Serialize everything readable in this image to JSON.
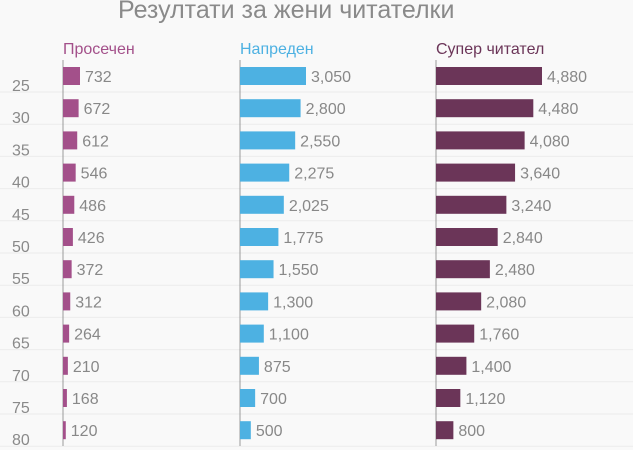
{
  "chart_data": {
    "type": "bar",
    "title": "Резултати за жени читателки",
    "categories": [
      "25",
      "30",
      "35",
      "40",
      "45",
      "50",
      "55",
      "60",
      "65",
      "70",
      "75",
      "80"
    ],
    "series": [
      {
        "name": "Просечен",
        "color": "#a3508a",
        "values": [
          732,
          672,
          612,
          546,
          486,
          426,
          372,
          312,
          264,
          210,
          168,
          120
        ],
        "labels": [
          "732",
          "672",
          "612",
          "546",
          "486",
          "426",
          "372",
          "312",
          "264",
          "210",
          "168",
          "120"
        ]
      },
      {
        "name": "Напреден",
        "color": "#4db1e2",
        "values": [
          3050,
          2800,
          2550,
          2275,
          2025,
          1775,
          1550,
          1300,
          1100,
          875,
          700,
          500
        ],
        "labels": [
          "3,050",
          "2,800",
          "2,550",
          "2,275",
          "2,025",
          "1,775",
          "1,550",
          "1,300",
          "1,100",
          "875",
          "700",
          "500"
        ]
      },
      {
        "name": "Супер читател",
        "color": "#6b3558",
        "values": [
          4880,
          4480,
          4080,
          3640,
          3240,
          2840,
          2480,
          2080,
          1760,
          1400,
          1120,
          800
        ],
        "labels": [
          "4,880",
          "4,480",
          "4,080",
          "3,640",
          "3,240",
          "2,840",
          "2,480",
          "2,080",
          "1,760",
          "1,400",
          "1,120",
          "800"
        ]
      }
    ],
    "grid": true,
    "legend": "top"
  }
}
